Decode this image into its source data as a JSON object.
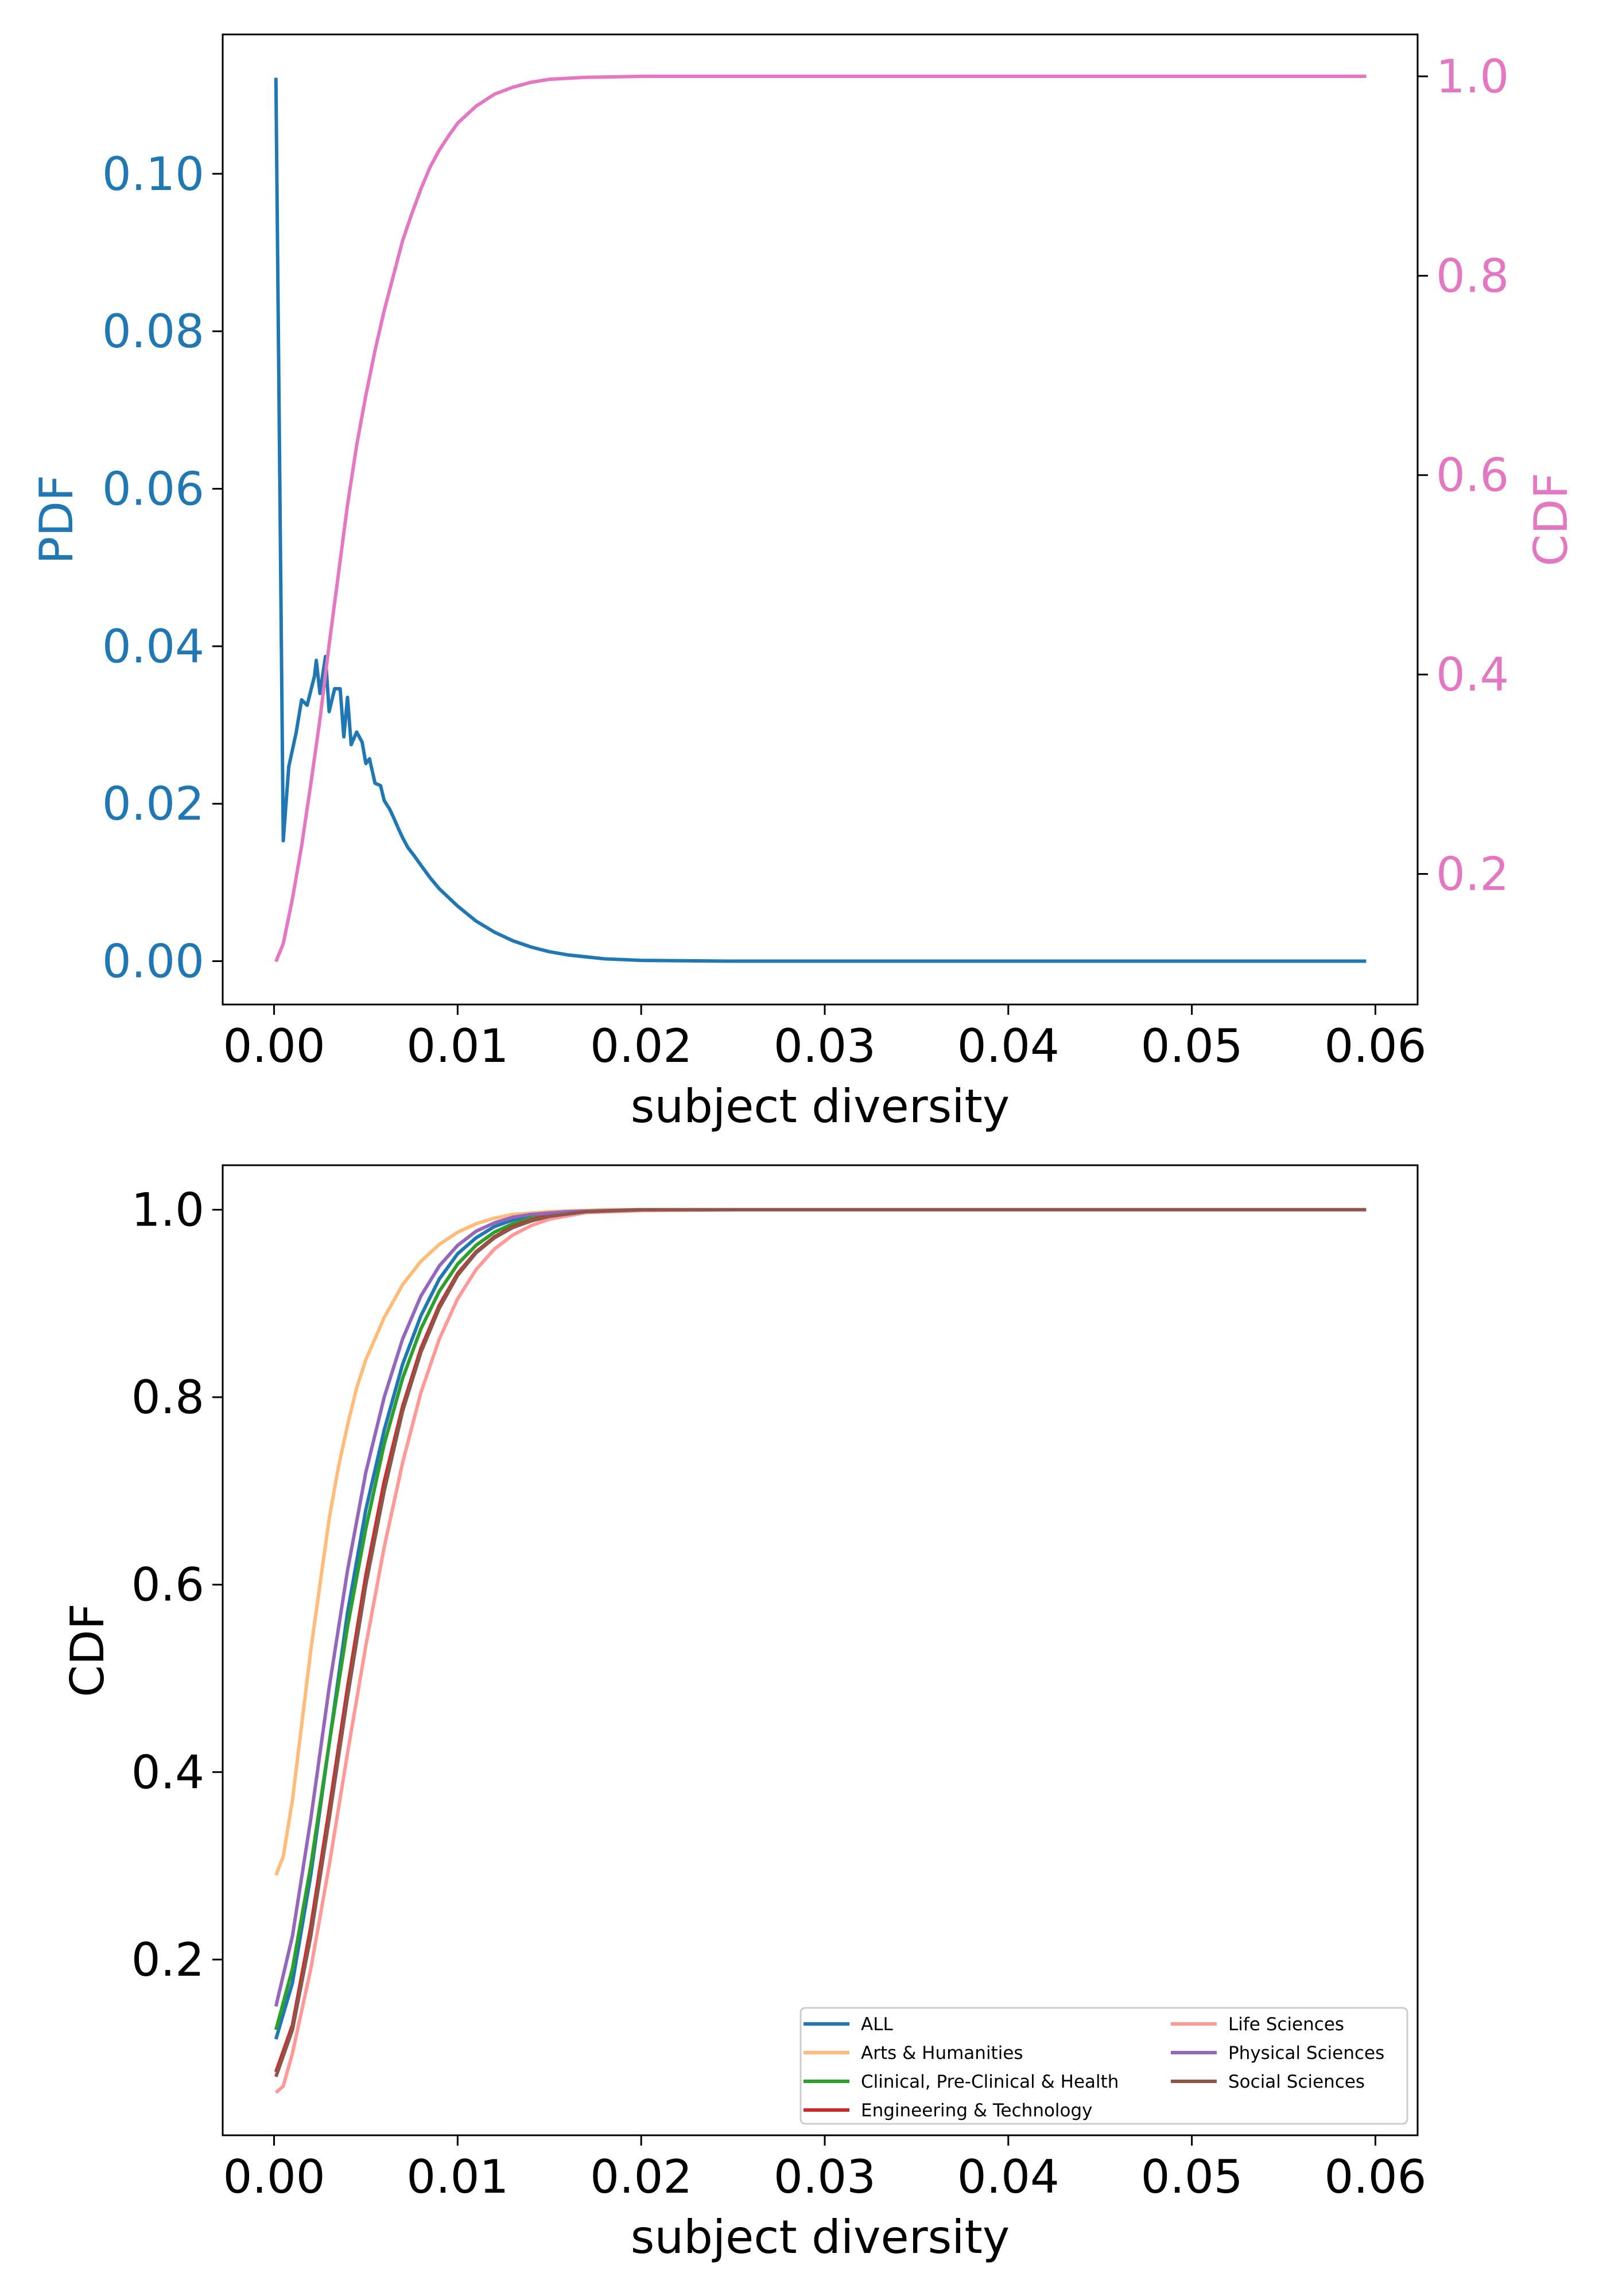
{
  "colors": {
    "pdf": "#1f77b4",
    "cdf": "#e377c2",
    "axis": "#000000"
  },
  "chart_data": [
    {
      "id": "top",
      "type": "line",
      "xlabel": "subject diversity",
      "ylabel_left": "PDF",
      "ylabel_right": "CDF",
      "xlim": [
        -0.0028,
        0.0623
      ],
      "ylim_left": [
        -0.0055,
        0.1177
      ],
      "ylim_right": [
        0.069,
        1.042
      ],
      "xticks": [
        0.0,
        0.01,
        0.02,
        0.03,
        0.04,
        0.05,
        0.06
      ],
      "xtick_labels": [
        "0.00",
        "0.01",
        "0.02",
        "0.03",
        "0.04",
        "0.05",
        "0.06"
      ],
      "yticks_left": [
        0.0,
        0.02,
        0.04,
        0.06,
        0.08,
        0.1
      ],
      "ytick_labels_left": [
        "0.00",
        "0.02",
        "0.04",
        "0.06",
        "0.08",
        "0.10"
      ],
      "yticks_right": [
        0.2,
        0.4,
        0.6,
        0.8,
        1.0
      ],
      "ytick_labels_right": [
        "0.2",
        "0.4",
        "0.6",
        "0.8",
        "1.0"
      ],
      "grid": false,
      "series": [
        {
          "name": "PDF",
          "axis": "left",
          "color": "#1f77b4",
          "points": [
            [
              0.0001,
              0.1122
            ],
            [
              0.0005,
              0.0153
            ],
            [
              0.0008,
              0.0247
            ],
            [
              0.0012,
              0.029
            ],
            [
              0.0015,
              0.0332
            ],
            [
              0.0018,
              0.0325
            ],
            [
              0.0022,
              0.0362
            ],
            [
              0.0023,
              0.0382
            ],
            [
              0.0025,
              0.034
            ],
            [
              0.0028,
              0.0387
            ],
            [
              0.003,
              0.0317
            ],
            [
              0.0033,
              0.0346
            ],
            [
              0.0036,
              0.0346
            ],
            [
              0.0038,
              0.0285
            ],
            [
              0.004,
              0.0335
            ],
            [
              0.0042,
              0.0275
            ],
            [
              0.0045,
              0.0291
            ],
            [
              0.0048,
              0.0278
            ],
            [
              0.005,
              0.0251
            ],
            [
              0.0052,
              0.0257
            ],
            [
              0.0055,
              0.0226
            ],
            [
              0.0058,
              0.0223
            ],
            [
              0.006,
              0.0204
            ],
            [
              0.0063,
              0.0193
            ],
            [
              0.0065,
              0.0183
            ],
            [
              0.0068,
              0.0167
            ],
            [
              0.007,
              0.0157
            ],
            [
              0.0073,
              0.0144
            ],
            [
              0.0076,
              0.0135
            ],
            [
              0.008,
              0.0122
            ],
            [
              0.0085,
              0.0106
            ],
            [
              0.009,
              0.0092
            ],
            [
              0.0095,
              0.0081
            ],
            [
              0.01,
              0.007
            ],
            [
              0.011,
              0.0051
            ],
            [
              0.012,
              0.0037
            ],
            [
              0.013,
              0.0026
            ],
            [
              0.014,
              0.0018
            ],
            [
              0.015,
              0.0012
            ],
            [
              0.016,
              0.0008
            ],
            [
              0.018,
              0.0003
            ],
            [
              0.02,
              0.0001
            ],
            [
              0.025,
              0.0
            ],
            [
              0.03,
              0.0
            ],
            [
              0.04,
              0.0
            ],
            [
              0.05,
              0.0
            ],
            [
              0.0595,
              0.0
            ]
          ]
        },
        {
          "name": "CDF",
          "axis": "right",
          "color": "#e377c2",
          "points": [
            [
              0.0001,
              0.112
            ],
            [
              0.0005,
              0.13
            ],
            [
              0.001,
              0.175
            ],
            [
              0.0015,
              0.228
            ],
            [
              0.002,
              0.29
            ],
            [
              0.0025,
              0.355
            ],
            [
              0.003,
              0.43
            ],
            [
              0.0035,
              0.5
            ],
            [
              0.004,
              0.57
            ],
            [
              0.0045,
              0.63
            ],
            [
              0.005,
              0.68
            ],
            [
              0.0055,
              0.725
            ],
            [
              0.006,
              0.765
            ],
            [
              0.0065,
              0.8
            ],
            [
              0.007,
              0.835
            ],
            [
              0.0075,
              0.862
            ],
            [
              0.008,
              0.887
            ],
            [
              0.0085,
              0.909
            ],
            [
              0.009,
              0.926
            ],
            [
              0.0095,
              0.94
            ],
            [
              0.01,
              0.953
            ],
            [
              0.011,
              0.97
            ],
            [
              0.012,
              0.982
            ],
            [
              0.013,
              0.989
            ],
            [
              0.014,
              0.994
            ],
            [
              0.015,
              0.997
            ],
            [
              0.017,
              0.999
            ],
            [
              0.02,
              1.0
            ],
            [
              0.03,
              1.0
            ],
            [
              0.04,
              1.0
            ],
            [
              0.05,
              1.0
            ],
            [
              0.0595,
              1.0
            ]
          ]
        }
      ]
    },
    {
      "id": "bottom",
      "type": "line",
      "xlabel": "subject diversity",
      "ylabel": "CDF",
      "xlim": [
        -0.0028,
        0.0623
      ],
      "ylim": [
        0.0125,
        1.0475
      ],
      "xticks": [
        0.0,
        0.01,
        0.02,
        0.03,
        0.04,
        0.05,
        0.06
      ],
      "xtick_labels": [
        "0.00",
        "0.01",
        "0.02",
        "0.03",
        "0.04",
        "0.05",
        "0.06"
      ],
      "yticks": [
        0.2,
        0.4,
        0.6,
        0.8,
        1.0
      ],
      "ytick_labels": [
        "0.2",
        "0.4",
        "0.6",
        "0.8",
        "1.0"
      ],
      "grid": false,
      "legend": {
        "placement": "lower-right",
        "columns": 2
      },
      "series": [
        {
          "name": "ALL",
          "color": "#1f77b4",
          "points": [
            [
              0.0001,
              0.115
            ],
            [
              0.001,
              0.175
            ],
            [
              0.002,
              0.29
            ],
            [
              0.003,
              0.43
            ],
            [
              0.004,
              0.57
            ],
            [
              0.005,
              0.68
            ],
            [
              0.006,
              0.765
            ],
            [
              0.007,
              0.835
            ],
            [
              0.008,
              0.887
            ],
            [
              0.009,
              0.926
            ],
            [
              0.01,
              0.953
            ],
            [
              0.011,
              0.97
            ],
            [
              0.012,
              0.982
            ],
            [
              0.013,
              0.989
            ],
            [
              0.014,
              0.994
            ],
            [
              0.015,
              0.997
            ],
            [
              0.017,
              0.999
            ],
            [
              0.02,
              1.0
            ],
            [
              0.03,
              1.0
            ],
            [
              0.04,
              1.0
            ],
            [
              0.05,
              1.0
            ],
            [
              0.0595,
              1.0
            ]
          ]
        },
        {
          "name": "Arts & Humanities",
          "color": "#ffbb78",
          "points": [
            [
              0.0001,
              0.29
            ],
            [
              0.0005,
              0.31
            ],
            [
              0.001,
              0.37
            ],
            [
              0.0015,
              0.45
            ],
            [
              0.002,
              0.53
            ],
            [
              0.0025,
              0.6
            ],
            [
              0.003,
              0.67
            ],
            [
              0.0035,
              0.725
            ],
            [
              0.004,
              0.77
            ],
            [
              0.0045,
              0.81
            ],
            [
              0.005,
              0.84
            ],
            [
              0.006,
              0.885
            ],
            [
              0.007,
              0.92
            ],
            [
              0.008,
              0.945
            ],
            [
              0.009,
              0.963
            ],
            [
              0.01,
              0.976
            ],
            [
              0.011,
              0.985
            ],
            [
              0.012,
              0.991
            ],
            [
              0.013,
              0.995
            ],
            [
              0.015,
              0.998
            ],
            [
              0.018,
              1.0
            ],
            [
              0.03,
              1.0
            ],
            [
              0.04,
              1.0
            ],
            [
              0.05,
              1.0
            ],
            [
              0.0595,
              1.0
            ]
          ]
        },
        {
          "name": "Clinical, Pre-Clinical & Health",
          "color": "#2ca02c",
          "points": [
            [
              0.0001,
              0.125
            ],
            [
              0.001,
              0.19
            ],
            [
              0.002,
              0.3
            ],
            [
              0.003,
              0.43
            ],
            [
              0.004,
              0.555
            ],
            [
              0.005,
              0.66
            ],
            [
              0.006,
              0.75
            ],
            [
              0.007,
              0.82
            ],
            [
              0.008,
              0.873
            ],
            [
              0.009,
              0.913
            ],
            [
              0.01,
              0.942
            ],
            [
              0.011,
              0.962
            ],
            [
              0.012,
              0.976
            ],
            [
              0.013,
              0.985
            ],
            [
              0.014,
              0.991
            ],
            [
              0.015,
              0.995
            ],
            [
              0.017,
              0.998
            ],
            [
              0.02,
              1.0
            ],
            [
              0.03,
              1.0
            ],
            [
              0.04,
              1.0
            ],
            [
              0.05,
              1.0
            ],
            [
              0.0595,
              1.0
            ]
          ]
        },
        {
          "name": "Engineering & Technology",
          "color": "#d62728",
          "points": [
            [
              0.0001,
              0.08
            ],
            [
              0.001,
              0.13
            ],
            [
              0.002,
              0.235
            ],
            [
              0.003,
              0.36
            ],
            [
              0.004,
              0.49
            ],
            [
              0.005,
              0.61
            ],
            [
              0.006,
              0.71
            ],
            [
              0.007,
              0.79
            ],
            [
              0.008,
              0.852
            ],
            [
              0.009,
              0.898
            ],
            [
              0.01,
              0.932
            ],
            [
              0.011,
              0.955
            ],
            [
              0.012,
              0.971
            ],
            [
              0.013,
              0.982
            ],
            [
              0.014,
              0.989
            ],
            [
              0.015,
              0.994
            ],
            [
              0.017,
              0.998
            ],
            [
              0.02,
              1.0
            ],
            [
              0.03,
              1.0
            ],
            [
              0.04,
              1.0
            ],
            [
              0.05,
              1.0
            ],
            [
              0.0595,
              1.0
            ]
          ]
        },
        {
          "name": "Life Sciences",
          "color": "#ff9896",
          "points": [
            [
              0.0001,
              0.058
            ],
            [
              0.0005,
              0.065
            ],
            [
              0.001,
              0.1
            ],
            [
              0.002,
              0.19
            ],
            [
              0.003,
              0.3
            ],
            [
              0.004,
              0.42
            ],
            [
              0.005,
              0.535
            ],
            [
              0.006,
              0.64
            ],
            [
              0.007,
              0.73
            ],
            [
              0.008,
              0.805
            ],
            [
              0.009,
              0.862
            ],
            [
              0.01,
              0.905
            ],
            [
              0.011,
              0.936
            ],
            [
              0.012,
              0.958
            ],
            [
              0.013,
              0.973
            ],
            [
              0.014,
              0.983
            ],
            [
              0.015,
              0.99
            ],
            [
              0.017,
              0.997
            ],
            [
              0.02,
              0.999
            ],
            [
              0.025,
              1.0
            ],
            [
              0.03,
              1.0
            ],
            [
              0.04,
              1.0
            ],
            [
              0.05,
              1.0
            ],
            [
              0.0595,
              1.0
            ]
          ]
        },
        {
          "name": "Physical Sciences",
          "color": "#9467bd",
          "points": [
            [
              0.0001,
              0.15
            ],
            [
              0.001,
              0.225
            ],
            [
              0.002,
              0.35
            ],
            [
              0.003,
              0.49
            ],
            [
              0.004,
              0.615
            ],
            [
              0.005,
              0.72
            ],
            [
              0.006,
              0.8
            ],
            [
              0.007,
              0.862
            ],
            [
              0.008,
              0.908
            ],
            [
              0.009,
              0.94
            ],
            [
              0.01,
              0.962
            ],
            [
              0.011,
              0.977
            ],
            [
              0.012,
              0.986
            ],
            [
              0.013,
              0.992
            ],
            [
              0.014,
              0.995
            ],
            [
              0.016,
              0.998
            ],
            [
              0.02,
              1.0
            ],
            [
              0.03,
              1.0
            ],
            [
              0.04,
              1.0
            ],
            [
              0.05,
              1.0
            ],
            [
              0.0595,
              1.0
            ]
          ]
        },
        {
          "name": "Social Sciences",
          "color": "#8c564b",
          "points": [
            [
              0.0001,
              0.075
            ],
            [
              0.001,
              0.125
            ],
            [
              0.002,
              0.225
            ],
            [
              0.003,
              0.35
            ],
            [
              0.004,
              0.48
            ],
            [
              0.005,
              0.6
            ],
            [
              0.006,
              0.7
            ],
            [
              0.007,
              0.785
            ],
            [
              0.008,
              0.848
            ],
            [
              0.009,
              0.895
            ],
            [
              0.01,
              0.93
            ],
            [
              0.011,
              0.954
            ],
            [
              0.012,
              0.97
            ],
            [
              0.013,
              0.981
            ],
            [
              0.014,
              0.988
            ],
            [
              0.015,
              0.993
            ],
            [
              0.017,
              0.998
            ],
            [
              0.02,
              1.0
            ],
            [
              0.03,
              1.0
            ],
            [
              0.04,
              1.0
            ],
            [
              0.05,
              1.0
            ],
            [
              0.0595,
              1.0
            ]
          ]
        }
      ]
    }
  ]
}
